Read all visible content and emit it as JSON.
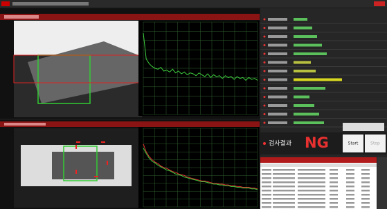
{
  "result": {
    "label": "검사결과",
    "value": "NG"
  },
  "buttons": {
    "start": "Start",
    "stop": "Stop"
  },
  "spectra": [
    {
      "ylim": [
        0,
        100
      ],
      "series": [
        {
          "color": "#3ecf3e",
          "values": [
            88,
            60,
            55,
            52,
            50,
            49,
            51,
            47,
            48,
            46,
            49,
            45,
            47,
            44,
            46,
            43,
            45,
            44,
            42,
            45,
            43,
            41,
            44,
            40,
            43,
            41,
            42,
            39,
            42,
            40,
            41,
            38,
            41,
            39,
            40,
            37,
            40,
            38,
            39,
            37
          ]
        }
      ]
    },
    {
      "ylim": [
        0,
        100
      ],
      "series": [
        {
          "color": "#e03030",
          "values": [
            80,
            70,
            64,
            60,
            57,
            55,
            52,
            50,
            49,
            47,
            45,
            44,
            42,
            41,
            40,
            38,
            37,
            36,
            35,
            34,
            33,
            33,
            32,
            31,
            30,
            30,
            29,
            29,
            28,
            28,
            27,
            27,
            26,
            26,
            25,
            25,
            25,
            24,
            24,
            23
          ]
        },
        {
          "color": "#3ecf3e",
          "values": [
            75,
            68,
            62,
            58,
            56,
            53,
            51,
            49,
            47,
            46,
            44,
            42,
            41,
            40,
            38,
            37,
            36,
            35,
            34,
            33,
            32,
            32,
            31,
            30,
            29,
            29,
            28,
            28,
            27,
            27,
            26,
            26,
            25,
            25,
            24,
            24,
            24,
            23,
            23,
            22
          ]
        }
      ]
    }
  ]
}
